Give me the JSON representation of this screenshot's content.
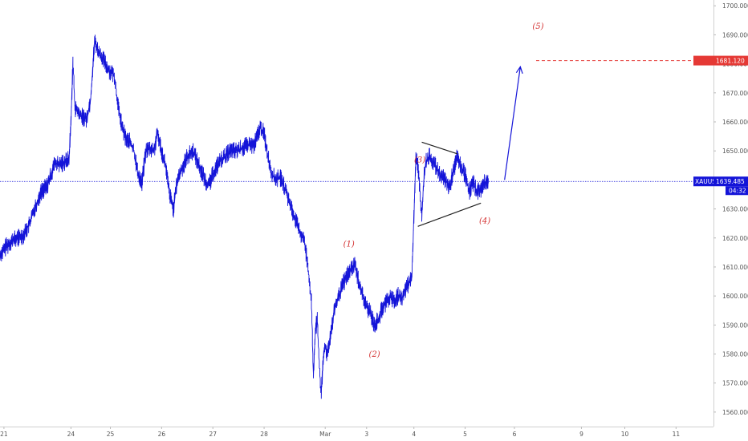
{
  "chart_data": {
    "type": "line",
    "symbol": "XAUUSD",
    "current_price": "1639.485",
    "countdown": "04:32",
    "target_price": "1681.120",
    "colors": {
      "series": "#1414d8",
      "target": "#e53935",
      "wave": "#d32f2f",
      "triangle": "#222222",
      "tag": "#1414d8"
    },
    "ylim": [
      1555,
      1702
    ],
    "y_ticks": [
      "1560.000",
      "1570.000",
      "1580.000",
      "1590.000",
      "1600.000",
      "1610.000",
      "1620.000",
      "1630.000",
      "1640.000",
      "1650.000",
      "1660.000",
      "1670.000",
      "1680.000",
      "1690.000",
      "1700.000"
    ],
    "x_ticks": [
      {
        "label": "21",
        "i": 2
      },
      {
        "label": "24",
        "i": 36
      },
      {
        "label": "25",
        "i": 56
      },
      {
        "label": "26",
        "i": 82
      },
      {
        "label": "27",
        "i": 108
      },
      {
        "label": "28",
        "i": 134
      },
      {
        "label": "Mar",
        "i": 165
      },
      {
        "label": "3",
        "i": 186
      },
      {
        "label": "4",
        "i": 210
      },
      {
        "label": "5",
        "i": 236
      },
      {
        "label": "6",
        "i": 261
      },
      {
        "label": "9",
        "i": 295
      },
      {
        "label": "10",
        "i": 317
      },
      {
        "label": "11",
        "i": 343
      }
    ],
    "x_range": [
      0,
      362
    ],
    "series_points": [
      [
        0,
        1614
      ],
      [
        3,
        1617
      ],
      [
        6,
        1619
      ],
      [
        9,
        1620
      ],
      [
        12,
        1621
      ],
      [
        15,
        1625
      ],
      [
        18,
        1631
      ],
      [
        21,
        1636
      ],
      [
        24,
        1638
      ],
      [
        26,
        1642
      ],
      [
        28,
        1646
      ],
      [
        30,
        1645
      ],
      [
        32,
        1646
      ],
      [
        35,
        1647
      ],
      [
        36,
        1660
      ],
      [
        37,
        1681
      ],
      [
        38,
        1665
      ],
      [
        41,
        1662
      ],
      [
        44,
        1661
      ],
      [
        46,
        1668
      ],
      [
        48,
        1688
      ],
      [
        50,
        1684
      ],
      [
        52,
        1682
      ],
      [
        55,
        1678
      ],
      [
        58,
        1676
      ],
      [
        60,
        1665
      ],
      [
        62,
        1658
      ],
      [
        64,
        1654
      ],
      [
        66,
        1653
      ],
      [
        68,
        1650
      ],
      [
        70,
        1642
      ],
      [
        72,
        1639
      ],
      [
        74,
        1650
      ],
      [
        76,
        1651
      ],
      [
        78,
        1650
      ],
      [
        80,
        1656
      ],
      [
        82,
        1650
      ],
      [
        84,
        1645
      ],
      [
        86,
        1635
      ],
      [
        88,
        1630
      ],
      [
        90,
        1640
      ],
      [
        93,
        1645
      ],
      [
        95,
        1648
      ],
      [
        98,
        1650
      ],
      [
        101,
        1645
      ],
      [
        104,
        1640
      ],
      [
        106,
        1638
      ],
      [
        108,
        1642
      ],
      [
        111,
        1646
      ],
      [
        114,
        1648
      ],
      [
        117,
        1650
      ],
      [
        120,
        1650
      ],
      [
        123,
        1651
      ],
      [
        126,
        1652
      ],
      [
        129,
        1652
      ],
      [
        132,
        1658
      ],
      [
        134,
        1656
      ],
      [
        136,
        1648
      ],
      [
        138,
        1642
      ],
      [
        140,
        1640
      ],
      [
        142,
        1641
      ],
      [
        144,
        1638
      ],
      [
        146,
        1634
      ],
      [
        148,
        1630
      ],
      [
        150,
        1626
      ],
      [
        152,
        1622
      ],
      [
        154,
        1620
      ],
      [
        156,
        1612
      ],
      [
        158,
        1598
      ],
      [
        159,
        1572
      ],
      [
        160,
        1588
      ],
      [
        161,
        1592
      ],
      [
        162,
        1576
      ],
      [
        163,
        1566
      ],
      [
        164,
        1578
      ],
      [
        165,
        1583
      ],
      [
        166,
        1580
      ],
      [
        168,
        1588
      ],
      [
        170,
        1596
      ],
      [
        172,
        1600
      ],
      [
        174,
        1604
      ],
      [
        176,
        1607
      ],
      [
        178,
        1609
      ],
      [
        180,
        1611
      ],
      [
        182,
        1605
      ],
      [
        184,
        1600
      ],
      [
        186,
        1596
      ],
      [
        188,
        1594
      ],
      [
        190,
        1590
      ],
      [
        192,
        1592
      ],
      [
        194,
        1596
      ],
      [
        196,
        1598
      ],
      [
        198,
        1600
      ],
      [
        200,
        1598
      ],
      [
        202,
        1600
      ],
      [
        204,
        1599
      ],
      [
        206,
        1603
      ],
      [
        208,
        1605
      ],
      [
        209,
        1607
      ],
      [
        210,
        1628
      ],
      [
        211,
        1648
      ],
      [
        212,
        1645
      ],
      [
        214,
        1628
      ],
      [
        215,
        1640
      ],
      [
        216,
        1646
      ],
      [
        218,
        1648
      ],
      [
        220,
        1646
      ],
      [
        222,
        1643
      ],
      [
        224,
        1641
      ],
      [
        226,
        1640
      ],
      [
        228,
        1637
      ],
      [
        230,
        1643
      ],
      [
        232,
        1648
      ],
      [
        234,
        1644
      ],
      [
        236,
        1642
      ],
      [
        238,
        1636
      ],
      [
        240,
        1639
      ],
      [
        242,
        1636
      ],
      [
        244,
        1637
      ],
      [
        246,
        1639
      ],
      [
        248,
        1640
      ]
    ],
    "projection": [
      [
        256,
        1640
      ],
      [
        264,
        1679
      ]
    ],
    "triangle_lines": [
      [
        [
          214,
          1653
        ],
        [
          232,
          1649
        ]
      ],
      [
        [
          212,
          1624
        ],
        [
          244,
          1632
        ]
      ]
    ],
    "wave_labels": [
      {
        "text": "(1)",
        "x": 177,
        "y": 1617
      },
      {
        "text": "(2)",
        "x": 190,
        "y": 1579
      },
      {
        "text": "(3)",
        "x": 213,
        "y": 1646
      },
      {
        "text": "(4)",
        "x": 246,
        "y": 1625
      },
      {
        "text": "(5)",
        "x": 273,
        "y": 1692
      }
    ],
    "target_line": {
      "price": 1681.12,
      "x_start": 272
    },
    "current_line_price": 1639.485
  }
}
